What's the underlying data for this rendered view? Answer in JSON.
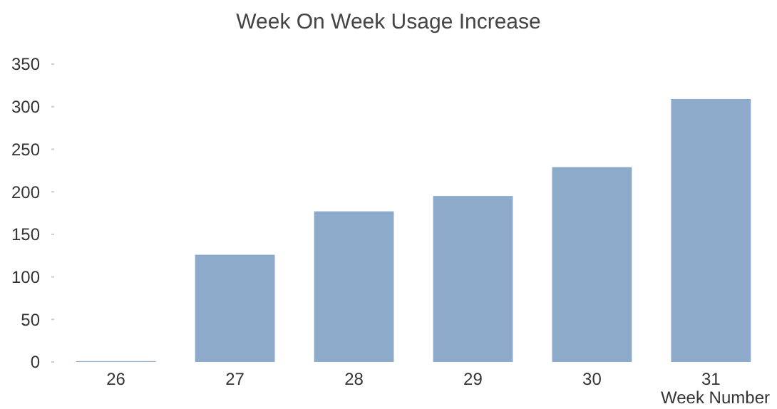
{
  "chart_data": {
    "type": "bar",
    "title": "Week On Week Usage Increase",
    "xlabel": "Week Number",
    "categories": [
      "26",
      "27",
      "28",
      "29",
      "30",
      "31"
    ],
    "values": [
      1,
      126,
      177,
      195,
      229,
      309
    ],
    "color": "#8eaacb",
    "ylim": [
      0,
      350
    ],
    "yticks": [
      0,
      50,
      100,
      150,
      200,
      250,
      300,
      350
    ],
    "grid": false
  }
}
